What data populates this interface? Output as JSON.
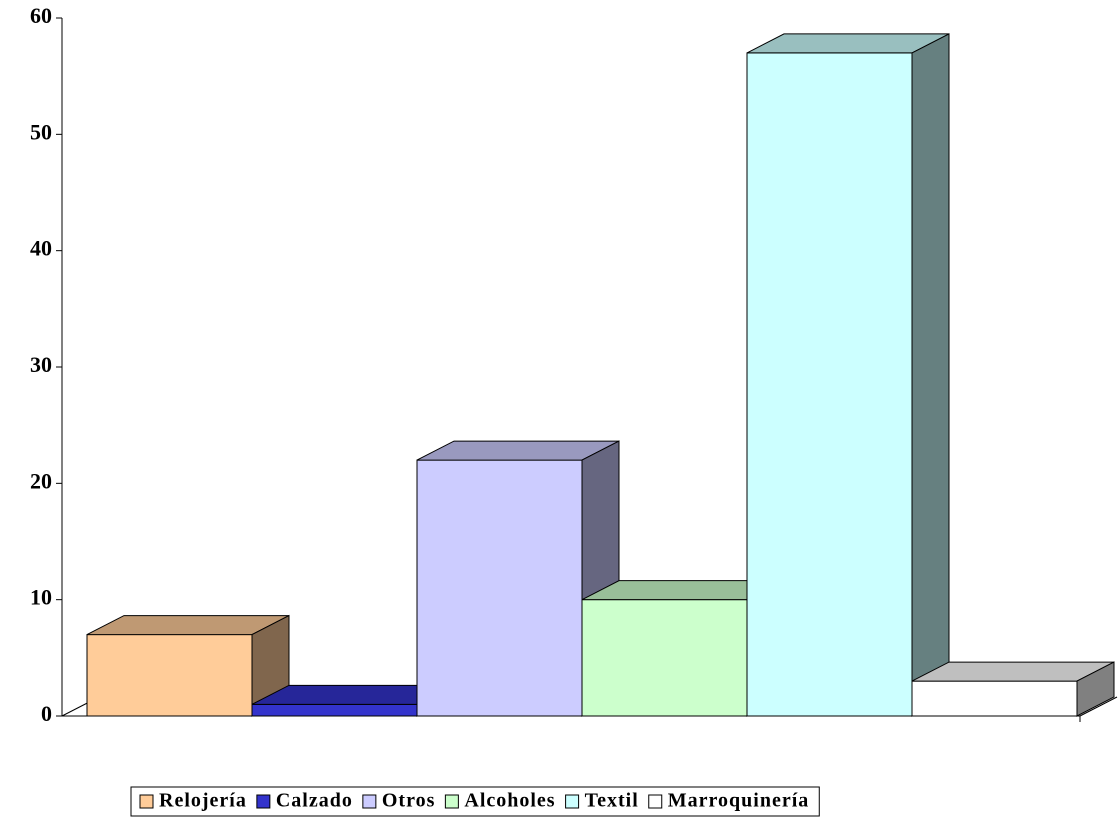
{
  "chart_data": {
    "type": "bar",
    "categories": [
      null
    ],
    "series": [
      {
        "name": "Relojería",
        "color": "#FFCC99",
        "values": [
          7
        ]
      },
      {
        "name": "Calzado",
        "color": "#3333CC",
        "values": [
          1
        ]
      },
      {
        "name": "Otros",
        "color": "#CCCCFF",
        "values": [
          22
        ]
      },
      {
        "name": "Alcoholes",
        "color": "#CCFFCC",
        "values": [
          10
        ]
      },
      {
        "name": "Textil",
        "color": "#CCFFFF",
        "values": [
          57
        ]
      },
      {
        "name": "Marroquinería",
        "color": "#FFFFFF",
        "values": [
          3
        ]
      }
    ],
    "ylim": [
      0,
      60
    ],
    "yticks": [
      0,
      10,
      20,
      30,
      40,
      50,
      60
    ],
    "grid": false,
    "legend": "bottom"
  }
}
